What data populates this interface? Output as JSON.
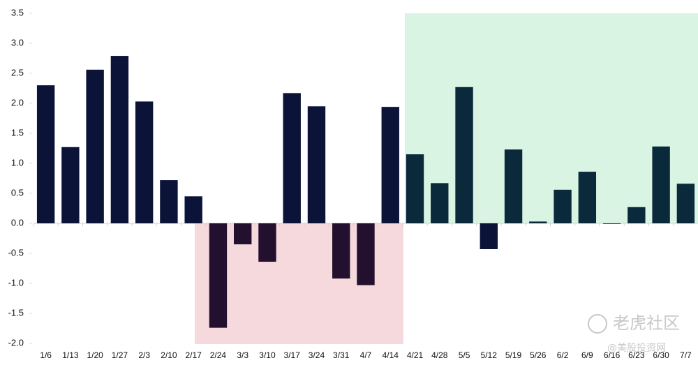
{
  "chart_data": {
    "type": "bar",
    "categories": [
      "1/6",
      "1/13",
      "1/20",
      "1/27",
      "2/3",
      "2/10",
      "2/17",
      "2/24",
      "3/3",
      "3/10",
      "3/17",
      "3/24",
      "3/31",
      "4/7",
      "4/14",
      "4/21",
      "4/28",
      "5/5",
      "5/12",
      "5/19",
      "5/26",
      "6/2",
      "6/9",
      "6/16",
      "6/23",
      "6/30",
      "7/7"
    ],
    "values": [
      2.3,
      1.27,
      2.56,
      2.79,
      2.03,
      0.72,
      0.45,
      -1.74,
      -0.35,
      -0.64,
      2.17,
      1.95,
      -0.92,
      -1.03,
      1.94,
      1.15,
      0.67,
      2.27,
      -0.43,
      1.23,
      0.03,
      0.56,
      0.86,
      -0.01,
      0.27,
      1.28,
      0.66
    ],
    "colors": [
      "#0b1438",
      "#0b1438",
      "#0b1438",
      "#0b1438",
      "#0b1438",
      "#0b1438",
      "#0b1438",
      "#23102f",
      "#23102f",
      "#23102f",
      "#0b1438",
      "#0b1438",
      "#23102f",
      "#23102f",
      "#0b1438",
      "#0a2a3c",
      "#0a2a3c",
      "#0a2a3c",
      "#0b1438",
      "#0a2a3c",
      "#0a2a3c",
      "#0a2a3c",
      "#0a2a3c",
      "#0a2a3c",
      "#0a2a3c",
      "#0a2a3c",
      "#0a2a3c"
    ],
    "ylim": [
      -2.0,
      3.5
    ],
    "yticks": [
      3.5,
      {
        "value": 3,
        "label": "3.0"
      },
      2.5,
      {
        "value": 2,
        "label": "2.0"
      },
      1.5,
      {
        "value": 1,
        "label": "1.0"
      },
      0.5,
      {
        "value": 0,
        "label": "0.0"
      },
      -0.5,
      {
        "value": -1,
        "label": "-1.0"
      },
      -1.5,
      {
        "value": -2,
        "label": "-2.0"
      }
    ],
    "watermark": "老虎社区",
    "watermark_sub": "@美股投资网"
  }
}
